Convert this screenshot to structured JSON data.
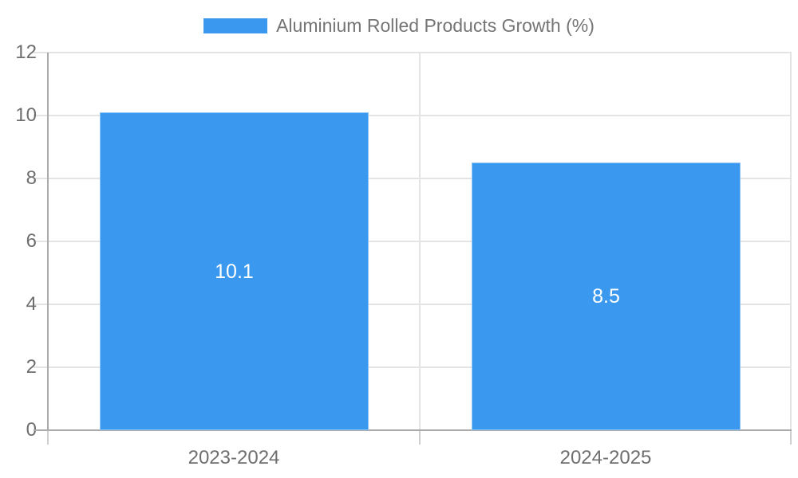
{
  "chart_data": {
    "type": "bar",
    "title": "",
    "categories": [
      "2023-2024",
      "2024-2025"
    ],
    "series": [
      {
        "name": "Aluminium Rolled Products Growth (%)",
        "values": [
          10.1,
          8.5
        ]
      }
    ],
    "value_labels": [
      "10.1",
      "8.5"
    ],
    "ylim": [
      0,
      12
    ],
    "yticks": [
      0,
      2,
      4,
      6,
      8,
      10,
      12
    ],
    "ytick_labels": [
      "0",
      "2",
      "4",
      "6",
      "8",
      "10",
      "12"
    ],
    "grid": true,
    "legend_position": "top-center",
    "colors": {
      "bar": "#3a99ee",
      "bar_border": "#8ec4f4",
      "bar_label": "#ffffff",
      "grid": "#e4e4e4",
      "axis": "#ababab",
      "outer_tick": "#cfcfcf",
      "tick_text": "#6e6e6e",
      "legend_text": "#757575",
      "background": "#ffffff"
    }
  }
}
